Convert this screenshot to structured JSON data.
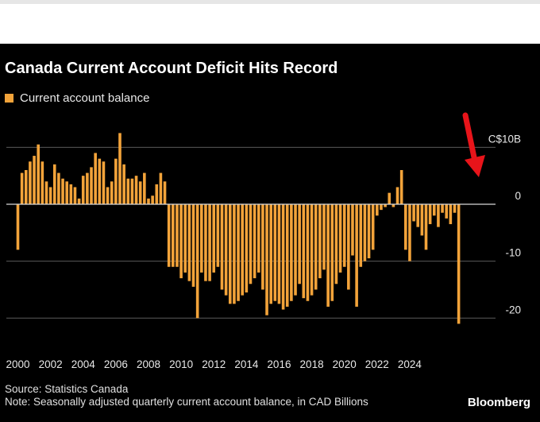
{
  "title": "Canada Current Account Deficit Hits Record",
  "legend": {
    "label": "Current account balance",
    "color": "#f2a33a"
  },
  "source": "Source: Statistics Canada",
  "note": "Note: Seasonally adjusted quarterly current account balance, in CAD Billions",
  "brand": "Bloomberg",
  "annotation": {
    "type": "arrow",
    "color": "#e8141a"
  },
  "chart_data": {
    "type": "bar",
    "bar_color": "#f2a33a",
    "x_start_year": 2000,
    "frequency": "quarterly",
    "ylim": [
      -21.5,
      12
    ],
    "y_ticks": [
      {
        "value": 10,
        "label": "C$10B"
      },
      {
        "value": 0,
        "label": "0"
      },
      {
        "value": -10,
        "label": "-10"
      },
      {
        "value": -20,
        "label": "-20"
      }
    ],
    "x_ticks": [
      "2000",
      "2002",
      "2004",
      "2006",
      "2008",
      "2010",
      "2012",
      "2014",
      "2016",
      "2018",
      "2020",
      "2022",
      "2024"
    ],
    "series": [
      {
        "name": "Current account balance",
        "values": [
          -8,
          5.5,
          6,
          7.5,
          8.5,
          10.5,
          7.5,
          4,
          3,
          7,
          5.5,
          4.5,
          4,
          3.5,
          3,
          1,
          5,
          5.5,
          6.5,
          9,
          8,
          7.5,
          3,
          4,
          8,
          12.5,
          7,
          4.5,
          4.5,
          5,
          4,
          5.5,
          1,
          1.5,
          3.5,
          5.5,
          4,
          -11,
          -11,
          -11,
          -13,
          -12,
          -13.5,
          -14.5,
          -20,
          -12,
          -13.5,
          -13.5,
          -12,
          -11,
          -15,
          -16,
          -17.5,
          -17.5,
          -17,
          -16,
          -15.5,
          -14,
          -13,
          -12,
          -15,
          -19.5,
          -17.5,
          -17,
          -17.5,
          -18.5,
          -18,
          -17,
          -16,
          -14,
          -16.5,
          -17,
          -16,
          -15,
          -13,
          -11.5,
          -18,
          -17,
          -14,
          -12,
          -11,
          -15,
          -9,
          -18,
          -11,
          -10,
          -9.5,
          -8,
          -2,
          -1,
          -0.5,
          2,
          -0.5,
          3,
          6,
          -8,
          -10,
          -3,
          -4,
          -5.5,
          -8,
          -3.5,
          -2,
          -4,
          -1.5,
          -2.5,
          -3.5,
          -1.5,
          -21
        ]
      }
    ]
  }
}
